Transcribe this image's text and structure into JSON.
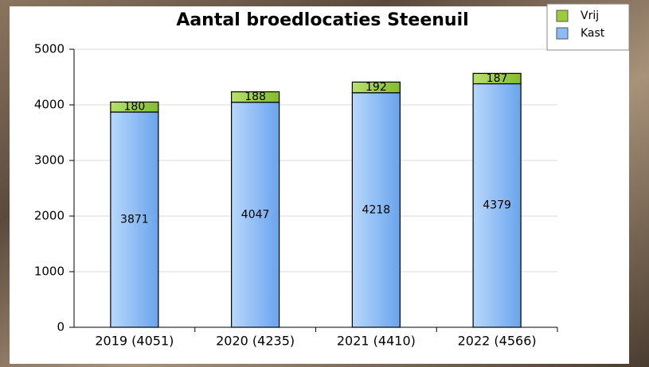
{
  "chart_data": {
    "type": "stacked_bar",
    "title": "Aantal broedlocaties Steenuil",
    "categories": [
      "2019 (4051)",
      "2020 (4235)",
      "2021 (4410)",
      "2022 (4566)"
    ],
    "series": [
      {
        "name": "Kast",
        "color": "#8cbcf4",
        "values": [
          3871,
          4047,
          4218,
          4379
        ]
      },
      {
        "name": "Vrij",
        "color": "#9ccc3c",
        "values": [
          180,
          188,
          192,
          187
        ]
      }
    ],
    "ylim": [
      0,
      5000
    ],
    "yticks": [
      0,
      1000,
      2000,
      3000,
      4000,
      5000
    ],
    "grid": true,
    "legend": "top-right"
  }
}
